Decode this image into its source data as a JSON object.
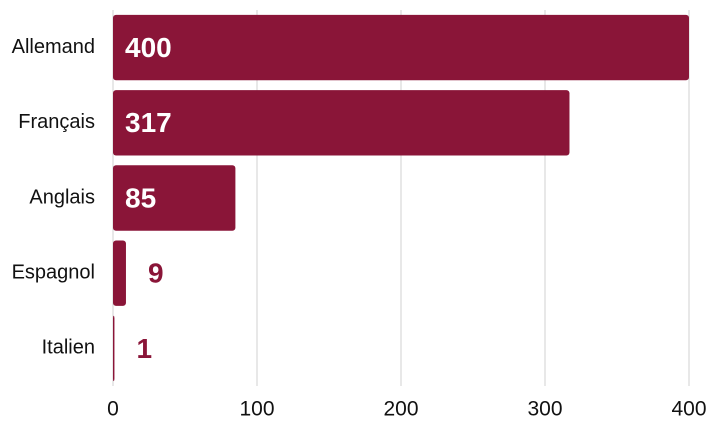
{
  "chart_data": {
    "type": "barh",
    "categories": [
      "Allemand",
      "Français",
      "Anglais",
      "Espagnol",
      "Italien"
    ],
    "values": [
      400,
      317,
      85,
      9,
      1
    ],
    "color": "#8a1538",
    "xlim": [
      0,
      400
    ],
    "xticks": [
      0,
      100,
      200,
      300,
      400
    ],
    "grid": true
  }
}
